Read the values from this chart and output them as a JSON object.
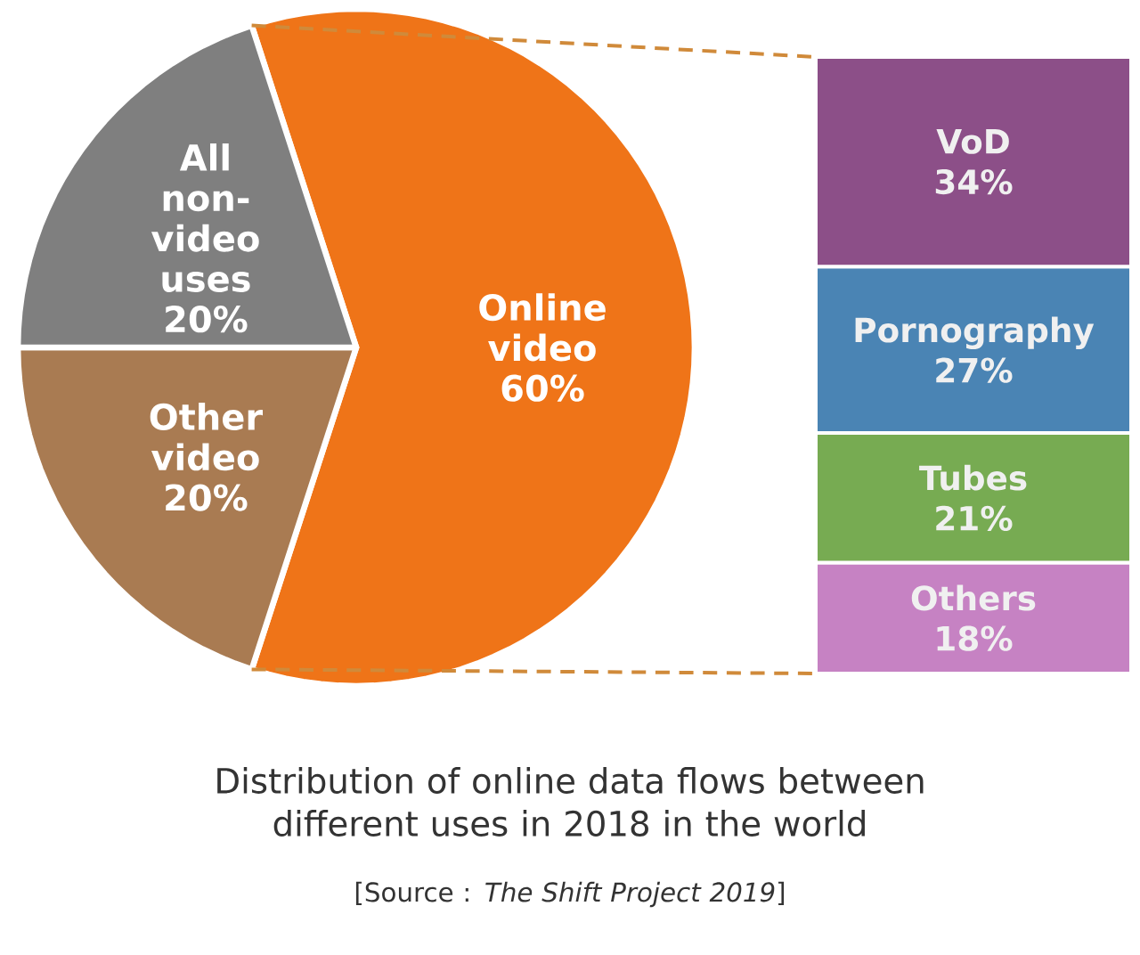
{
  "chart_data": [
    {
      "type": "pie",
      "title": "Distribution of online data flows between different uses in 2018 in the world",
      "categories": [
        "Online video",
        "Other video",
        "All non-video uses"
      ],
      "values": [
        60,
        20,
        20
      ],
      "value_labels": [
        "60%",
        "20%",
        "20%"
      ],
      "colors": [
        "#ef7418",
        "#a97b52",
        "#7f7f7f"
      ],
      "annotations": [
        "[Source : *The Shift Project 2019*]"
      ]
    },
    {
      "type": "bar",
      "stacked": true,
      "categories": [
        null
      ],
      "series": [
        {
          "name": "Others",
          "color": "#c682c3",
          "values": [
            18
          ],
          "value_labels": [
            "18%"
          ]
        },
        {
          "name": "Tubes",
          "color": "#77ab52",
          "values": [
            21
          ],
          "value_labels": [
            "21%"
          ]
        },
        {
          "name": "Pornography",
          "color": "#4a84b4",
          "values": [
            27
          ],
          "value_labels": [
            "27%"
          ]
        },
        {
          "name": "VoD",
          "color": "#8c4f88",
          "values": [
            34
          ],
          "value_labels": [
            "34%"
          ]
        }
      ]
    }
  ]
}
